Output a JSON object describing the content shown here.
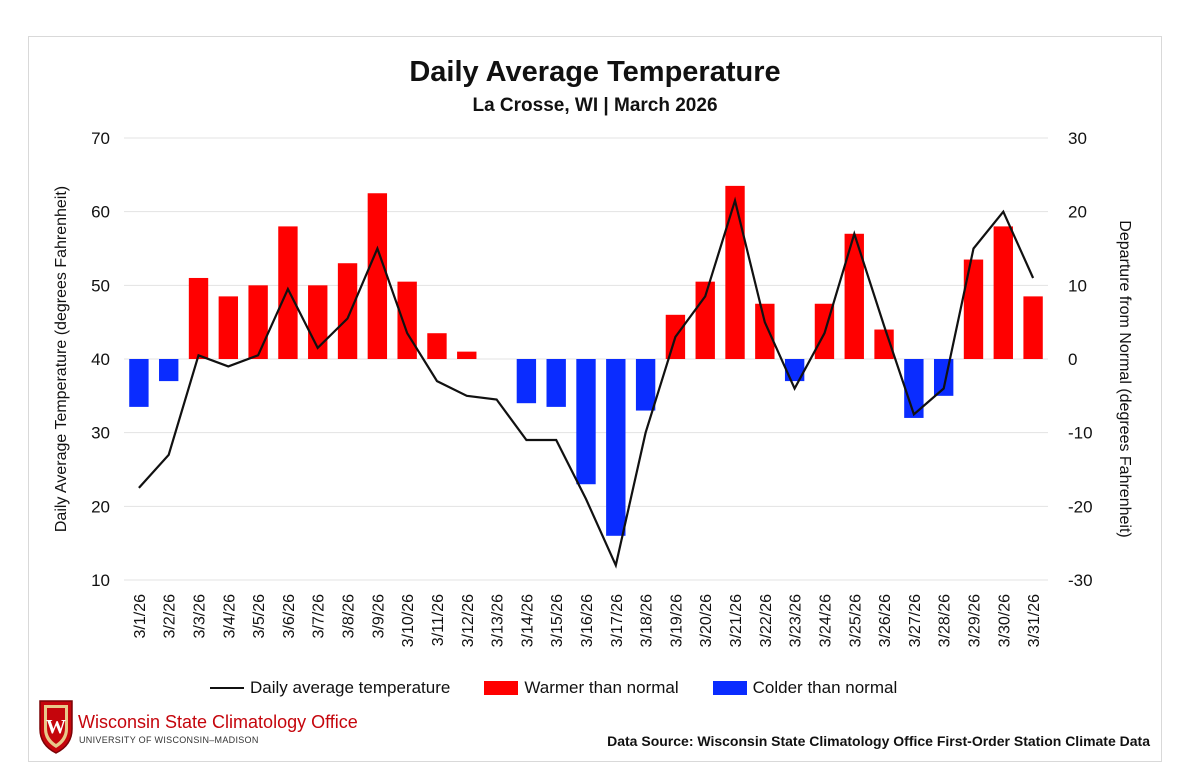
{
  "colors": {
    "warm": "#ff0000",
    "cold": "#0a2cff",
    "line": "#111111",
    "grid": "#e3e3e3",
    "accent": "#c5050c"
  },
  "branding": {
    "org_name": "Wisconsin State Climatology Office",
    "org_sub": "UNIVERSITY OF WISCONSIN–MADISON",
    "logo_icon": "uw-crest-icon",
    "logo_letter": "W",
    "source": "Data Source: Wisconsin State Climatology Office First-Order Station Climate Data"
  },
  "chart_data": {
    "type": "bar",
    "title": "Daily Average Temperature",
    "subtitle": "La Crosse, WI | March 2026",
    "ylabel": "Daily Average Temperature (degrees Fahrenheit)",
    "y2label": "Departure from Normal (degrees Fahrenheit)",
    "ylim": [
      10,
      70
    ],
    "y2lim": [
      -30,
      30
    ],
    "yticks": [
      10,
      20,
      30,
      40,
      50,
      60,
      70
    ],
    "y2ticks": [
      -30,
      -20,
      -10,
      0,
      10,
      20,
      30
    ],
    "grid": true,
    "legend_placement": "bottom",
    "categories": [
      "3/1/26",
      "3/2/26",
      "3/3/26",
      "3/4/26",
      "3/5/26",
      "3/6/26",
      "3/7/26",
      "3/8/26",
      "3/9/26",
      "3/10/26",
      "3/11/26",
      "3/12/26",
      "3/13/26",
      "3/14/26",
      "3/15/26",
      "3/16/26",
      "3/17/26",
      "3/18/26",
      "3/19/26",
      "3/20/26",
      "3/21/26",
      "3/22/26",
      "3/23/26",
      "3/24/26",
      "3/25/26",
      "3/26/26",
      "3/27/26",
      "3/28/26",
      "3/29/26",
      "3/30/26",
      "3/31/26"
    ],
    "series": [
      {
        "name": "Daily average temperature",
        "type": "line",
        "axis": "left",
        "values": [
          22.5,
          27,
          40.5,
          39,
          40.5,
          49.5,
          41.5,
          45.5,
          55,
          43.5,
          37,
          35,
          34.5,
          29,
          29,
          21,
          12,
          30,
          43,
          48.5,
          61.5,
          45,
          36,
          43.5,
          57,
          44.5,
          32.5,
          36,
          55,
          60,
          51
        ]
      },
      {
        "name": "Warmer than normal",
        "type": "bar",
        "axis": "right",
        "color": "warm",
        "values": [
          null,
          null,
          11,
          8.5,
          10,
          18,
          10,
          13,
          22.5,
          10.5,
          3.5,
          1,
          null,
          null,
          null,
          null,
          null,
          null,
          6,
          10.5,
          23.5,
          7.5,
          null,
          7.5,
          17,
          4,
          null,
          null,
          13.5,
          18,
          8.5
        ]
      },
      {
        "name": "Colder than normal",
        "type": "bar",
        "axis": "right",
        "color": "cold",
        "values": [
          -6.5,
          -3,
          null,
          null,
          null,
          null,
          null,
          null,
          null,
          null,
          null,
          null,
          null,
          -6,
          -6.5,
          -17,
          -24,
          -7,
          null,
          null,
          null,
          null,
          -3,
          null,
          null,
          null,
          -8,
          -5,
          null,
          null,
          null
        ]
      }
    ]
  }
}
